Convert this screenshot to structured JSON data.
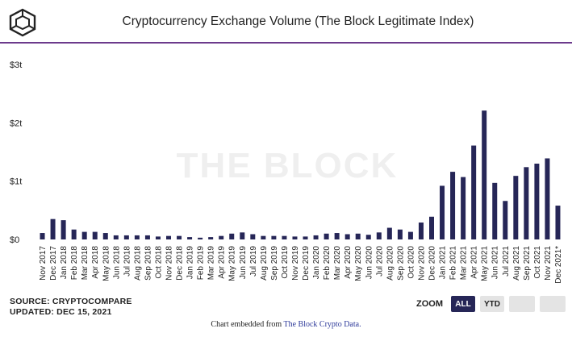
{
  "header": {
    "title": "Cryptocurrency Exchange Volume (The Block Legitimate Index)"
  },
  "watermark": "THE BLOCK",
  "footer": {
    "source": "SOURCE: CRYPTOCOMPARE",
    "updated": "UPDATED: DEC 15, 2021",
    "embed_prefix": "Chart embedded from ",
    "embed_link": "The Block Crypto Data."
  },
  "zoom": {
    "label": "ZOOM",
    "buttons": [
      "ALL",
      "YTD",
      "",
      ""
    ],
    "active": "ALL"
  },
  "colors": {
    "bar": "#262657",
    "accent_rule": "#6c3a8c",
    "button_active": "#262657",
    "button_inactive": "#e4e4e4"
  },
  "chart_data": {
    "type": "bar",
    "title": "Cryptocurrency Exchange Volume (The Block Legitimate Index)",
    "ylim": [
      0,
      3
    ],
    "yticks": [
      "$0",
      "$1t",
      "$2t",
      "$3t"
    ],
    "grid": false,
    "categories": [
      "Nov 2017",
      "Dec 2017",
      "Jan 2018",
      "Feb 2018",
      "Mar 2018",
      "Apr 2018",
      "May 2018",
      "Jun 2018",
      "Jul 2018",
      "Aug 2018",
      "Sep 2018",
      "Oct 2018",
      "Nov 2018",
      "Dec 2018",
      "Jan 2019",
      "Feb 2019",
      "Mar 2019",
      "Apr 2019",
      "May 2019",
      "Jun 2019",
      "Jul 2019",
      "Aug 2019",
      "Sep 2019",
      "Oct 2019",
      "Nov 2019",
      "Dec 2019",
      "Jan 2020",
      "Feb 2020",
      "Mar 2020",
      "Apr 2020",
      "May 2020",
      "Jun 2020",
      "Jul 2020",
      "Aug 2020",
      "Sep 2020",
      "Oct 2020",
      "Nov 2020",
      "Dec 2020",
      "Jan 2021",
      "Feb 2021",
      "Mar 2021",
      "Apr 2021",
      "May 2021",
      "Jun 2021",
      "Jul 2021",
      "Aug 2021",
      "Sep 2021",
      "Oct 2021",
      "Nov 2021",
      "Dec 2021*"
    ],
    "values": [
      0.11,
      0.35,
      0.33,
      0.17,
      0.13,
      0.13,
      0.11,
      0.07,
      0.07,
      0.07,
      0.07,
      0.05,
      0.06,
      0.06,
      0.04,
      0.03,
      0.04,
      0.06,
      0.1,
      0.12,
      0.09,
      0.06,
      0.06,
      0.06,
      0.05,
      0.05,
      0.07,
      0.1,
      0.11,
      0.09,
      0.1,
      0.08,
      0.12,
      0.2,
      0.17,
      0.13,
      0.29,
      0.39,
      0.92,
      1.16,
      1.07,
      1.61,
      2.21,
      0.97,
      0.66,
      1.09,
      1.24,
      1.3,
      1.39,
      0.58
    ],
    "xlabel": "",
    "ylabel": ""
  }
}
